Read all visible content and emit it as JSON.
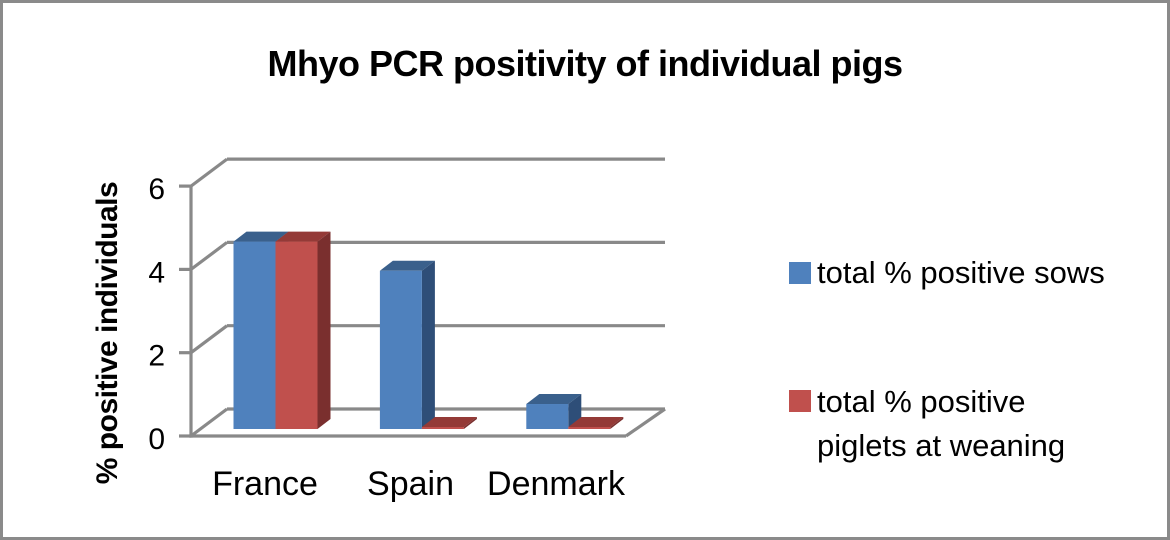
{
  "frame": {
    "background": "#ffffff",
    "border_color": "#8a8a8a"
  },
  "chart_data": {
    "type": "bar",
    "style": "3d-clustered-column",
    "title": "Mhyo PCR positivity of individual pigs",
    "categories": [
      "France",
      "Spain",
      "Denmark"
    ],
    "series": [
      {
        "name": "total % positive sows",
        "values": [
          4.5,
          3.8,
          0.6
        ],
        "color": "#4F81BD",
        "top_color": "#3A608C",
        "side_color": "#2E4E78"
      },
      {
        "name": "total % positive piglets at weaning",
        "values": [
          4.5,
          0,
          0
        ],
        "color": "#C0504D",
        "top_color": "#943A37",
        "side_color": "#7A2F2E"
      }
    ],
    "xlabel": "",
    "ylabel": "% positive individuals",
    "ylim": [
      0,
      6
    ],
    "yticks": [
      0,
      2,
      4,
      6
    ],
    "grid": true,
    "legend_position": "right",
    "colors": {
      "axis_line": "#898989",
      "gridline": "#898989",
      "text": "#000000"
    }
  },
  "legend": {
    "items": [
      {
        "color": "#4F81BD",
        "lines": [
          "total % positive sows",
          ""
        ]
      },
      {
        "color": "#C0504D",
        "lines": [
          "total % positive",
          "piglets at weaning"
        ]
      }
    ]
  }
}
